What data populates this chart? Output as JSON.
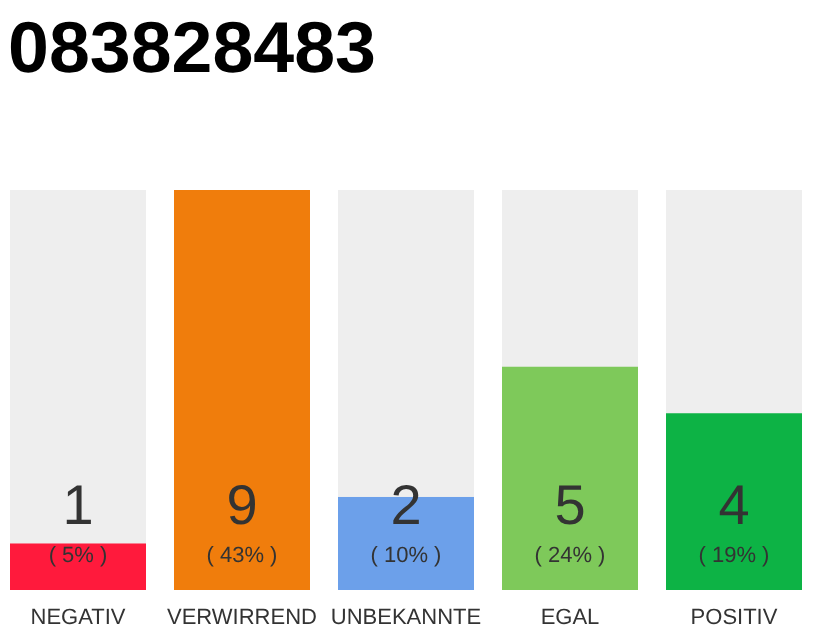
{
  "chart_data": {
    "type": "bar",
    "title": "083828483",
    "categories": [
      "NEGATIV",
      "VERWIRREND",
      "UNBEKANNTE",
      "EGAL",
      "POSITIV"
    ],
    "values": [
      5,
      43,
      10,
      24,
      19
    ],
    "colors": [
      "#ff1a3c",
      "#f07d0c",
      "#6ca0ea",
      "#7ec95a",
      "#0db345"
    ],
    "value_labels": [
      "( 5% )",
      "( 43% )",
      "( 10% )",
      "( 24% )",
      "( 19% )"
    ],
    "annotations": [
      "1",
      "9",
      "2",
      "5",
      "4"
    ],
    "tick_labels": "x"
  }
}
